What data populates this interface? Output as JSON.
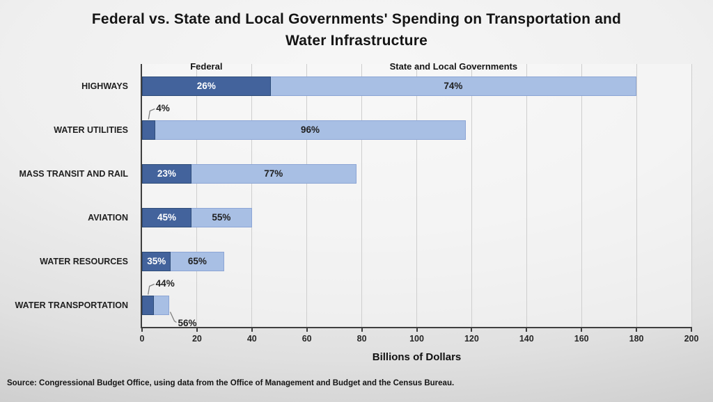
{
  "title": "Federal vs. State and Local Governments' Spending on Transportation and Water Infrastructure",
  "title_lines": [
    "Federal vs. State and Local Governments' Spending on Transportation and",
    "Water Infrastructure"
  ],
  "series_headers": {
    "federal": "Federal",
    "state_local": "State and Local Governments"
  },
  "source": "Source: Congressional Budget Office, using data from the Office of Management and Budget and the Census Bureau.",
  "colors": {
    "federal_fill": "#43639C",
    "federal_border": "#2E4C79",
    "state_fill": "#A8BFE4",
    "state_border": "#8CA5D5",
    "axis": "#3f3f3f",
    "gridline": "#cecece",
    "leader_line": "#7f7f7f"
  },
  "chart_data": {
    "type": "bar",
    "orientation": "horizontal",
    "stacked": true,
    "title": "Federal vs. State and Local Governments' Spending on Transportation and Water Infrastructure",
    "xlabel": "Billions of Dollars",
    "xlim": [
      0,
      200
    ],
    "x_ticks": [
      0,
      20,
      40,
      60,
      80,
      100,
      120,
      140,
      160,
      180,
      200
    ],
    "grid": true,
    "categories": [
      "HIGHWAYS",
      "WATER UTILITIES",
      "MASS TRANSIT AND RAIL",
      "AVIATION",
      "WATER RESOURCES",
      "WATER TRANSPORTATION"
    ],
    "series": [
      {
        "name": "Federal",
        "pct": [
          26,
          4,
          23,
          45,
          35,
          44
        ]
      },
      {
        "name": "State and Local Governments",
        "pct": [
          74,
          96,
          77,
          55,
          65,
          56
        ]
      }
    ],
    "totals_billions": [
      180,
      118,
      78,
      40,
      30,
      10
    ],
    "rows": [
      {
        "category": "HIGHWAYS",
        "total_billions": 180,
        "federal_pct": 26,
        "state_local_pct": 74,
        "federal_label": "inside",
        "state_label": "inside"
      },
      {
        "category": "WATER UTILITIES",
        "total_billions": 118,
        "federal_pct": 4,
        "state_local_pct": 96,
        "federal_label": "callout-above",
        "state_label": "inside"
      },
      {
        "category": "MASS TRANSIT AND RAIL",
        "total_billions": 78,
        "federal_pct": 23,
        "state_local_pct": 77,
        "federal_label": "inside",
        "state_label": "inside"
      },
      {
        "category": "AVIATION",
        "total_billions": 40,
        "federal_pct": 45,
        "state_local_pct": 55,
        "federal_label": "inside",
        "state_label": "inside"
      },
      {
        "category": "WATER RESOURCES",
        "total_billions": 30,
        "federal_pct": 35,
        "state_local_pct": 65,
        "federal_label": "inside",
        "state_label": "inside"
      },
      {
        "category": "WATER TRANSPORTATION",
        "total_billions": 10,
        "federal_pct": 44,
        "state_local_pct": 56,
        "federal_label": "callout-above",
        "state_label": "callout-below"
      }
    ]
  }
}
